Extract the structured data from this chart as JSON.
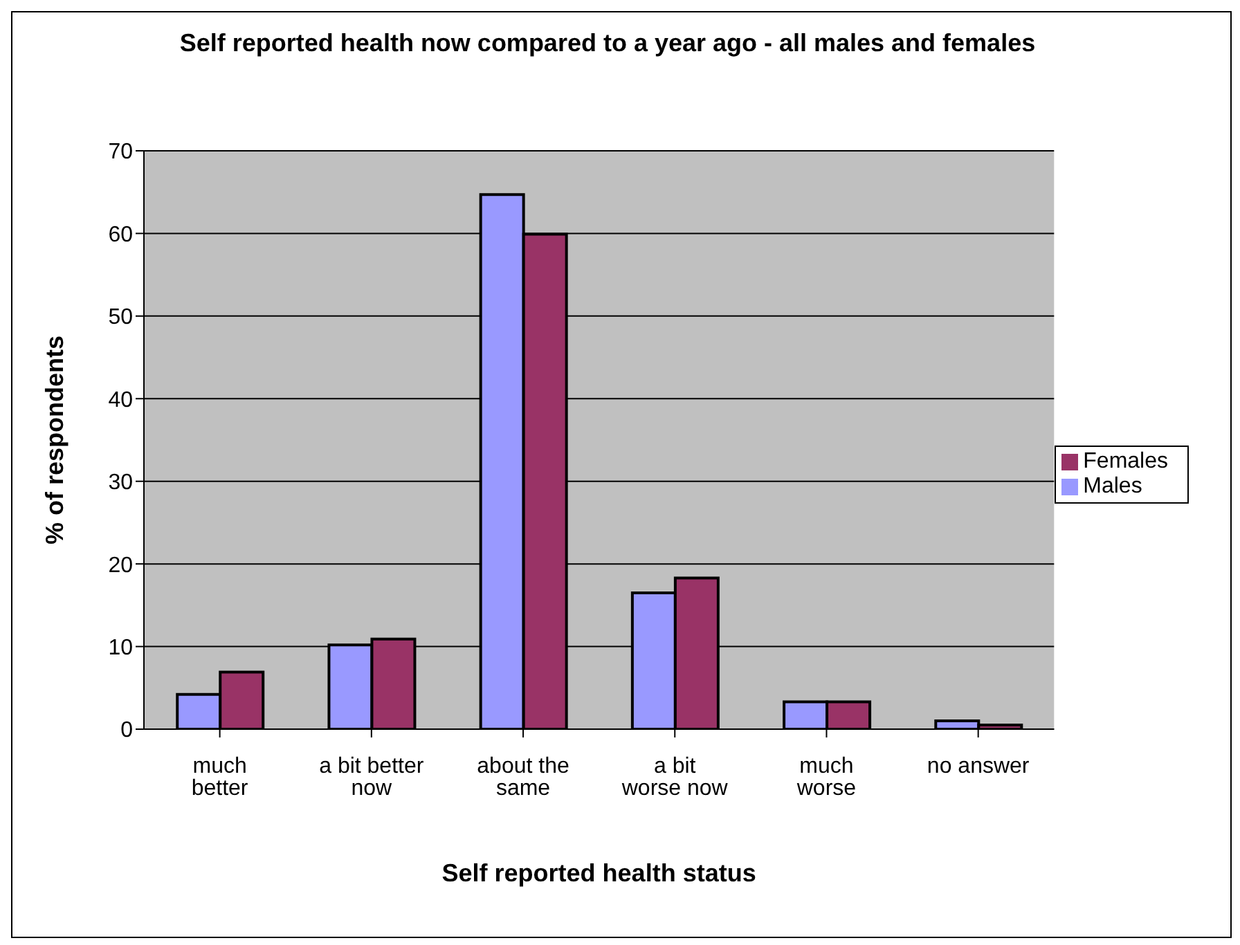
{
  "chart_data": {
    "type": "bar",
    "title": "Self reported health now compared to a year ago - all males and females",
    "xlabel": "Self reported health status",
    "ylabel": "% of respondents",
    "categories": [
      "much better",
      "a bit better now",
      "about the same",
      "a bit worse now",
      "much worse",
      "no answer"
    ],
    "series": [
      {
        "name": "Males",
        "color": "#9999ff",
        "values": [
          4.2,
          10.2,
          64.7,
          16.5,
          3.3,
          1.0
        ]
      },
      {
        "name": "Females",
        "color": "#993366",
        "values": [
          6.9,
          10.9,
          59.9,
          18.3,
          3.3,
          0.5
        ]
      }
    ],
    "ylim": [
      0,
      70
    ],
    "yticks": [
      0,
      10,
      20,
      30,
      40,
      50,
      60,
      70
    ],
    "grid": "y",
    "legend": "right"
  }
}
